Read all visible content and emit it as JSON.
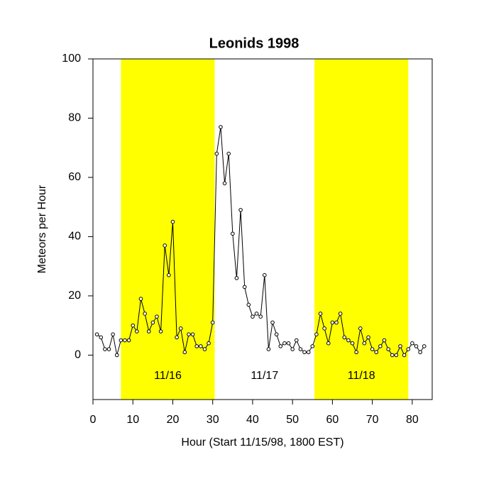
{
  "chart_data": {
    "type": "line",
    "title": "Leonids 1998",
    "x_label": "Hour (Start 11/15/98, 1800 EST)",
    "y_label": "Meteors per Hour",
    "x": [
      1,
      2,
      3,
      4,
      5,
      6,
      7,
      8,
      9,
      10,
      11,
      12,
      13,
      14,
      15,
      16,
      17,
      18,
      19,
      20,
      21,
      22,
      23,
      24,
      25,
      26,
      27,
      28,
      29,
      30,
      31,
      32,
      33,
      34,
      35,
      36,
      37,
      38,
      39,
      40,
      41,
      42,
      43,
      44,
      45,
      46,
      47,
      48,
      49,
      50,
      51,
      52,
      53,
      54,
      55,
      56,
      57,
      58,
      59,
      60,
      61,
      62,
      63,
      64,
      65,
      66,
      67,
      68,
      69,
      70,
      71,
      72,
      73,
      74,
      75,
      76,
      77,
      78,
      79,
      80,
      81,
      82,
      83
    ],
    "values": [
      7,
      6,
      2,
      2,
      7,
      0,
      5,
      5,
      5,
      10,
      8,
      19,
      14,
      8,
      11,
      13,
      8,
      37,
      27,
      45,
      6,
      9,
      1,
      7,
      7,
      3,
      3,
      2,
      4,
      11,
      68,
      77,
      58,
      68,
      41,
      26,
      49,
      23,
      17,
      13,
      14,
      13,
      27,
      2,
      11,
      7,
      3,
      4,
      4,
      2,
      5,
      2,
      1,
      1,
      3,
      7,
      14,
      9,
      4,
      11,
      11,
      14,
      6,
      5,
      4,
      1,
      9,
      4,
      6,
      2,
      1,
      3,
      5,
      2,
      0,
      0,
      3,
      0,
      2,
      4,
      3,
      1,
      3
    ],
    "color": "#000000",
    "bands": [
      {
        "from": 7,
        "to": 30.5,
        "color": "#ffff00"
      },
      {
        "from": 55.5,
        "to": 79,
        "color": "#ffff00"
      }
    ],
    "band_labels": [
      {
        "x": 18.75,
        "y": -7,
        "label": "11/16"
      },
      {
        "x": 43,
        "y": -7,
        "label": "11/17"
      },
      {
        "x": 67.25,
        "y": -7,
        "label": "11/18"
      }
    ],
    "xlim": [
      0,
      85
    ],
    "ylim": [
      -15,
      100
    ],
    "xticks": [
      0,
      10,
      20,
      30,
      40,
      50,
      60,
      70,
      80
    ],
    "yticks": [
      0,
      20,
      40,
      60,
      80,
      100
    ]
  }
}
